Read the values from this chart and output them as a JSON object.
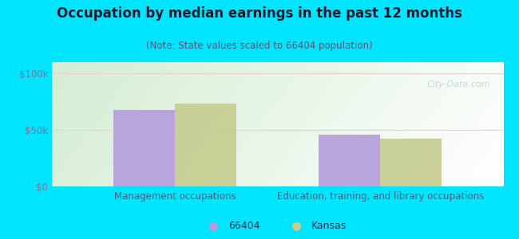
{
  "title": "Occupation by median earnings in the past 12 months",
  "subtitle": "(Note: State values scaled to 66404 population)",
  "categories": [
    "Management occupations",
    "Education, training, and library occupations"
  ],
  "values_66404": [
    68000,
    46000
  ],
  "values_kansas": [
    73000,
    42000
  ],
  "color_66404": "#b39ddb",
  "color_kansas": "#c5cc8e",
  "background_outer": "#00e5ff",
  "ylim": [
    0,
    110000
  ],
  "ytick_labels": [
    "$0",
    "$50k",
    "$100k"
  ],
  "ytick_values": [
    0,
    50000,
    100000
  ],
  "bar_width": 0.3,
  "legend_66404": "66404",
  "legend_kansas": "Kansas",
  "grid_color": "#e8d0d0",
  "watermark": "City-Data.com",
  "title_fontsize": 12,
  "subtitle_fontsize": 8.5,
  "tick_fontsize": 8.5,
  "xlabel_fontsize": 8.5,
  "title_color": "#1a1a2e",
  "subtitle_color": "#555577",
  "tick_color": "#777799",
  "xlabel_color": "#555577"
}
